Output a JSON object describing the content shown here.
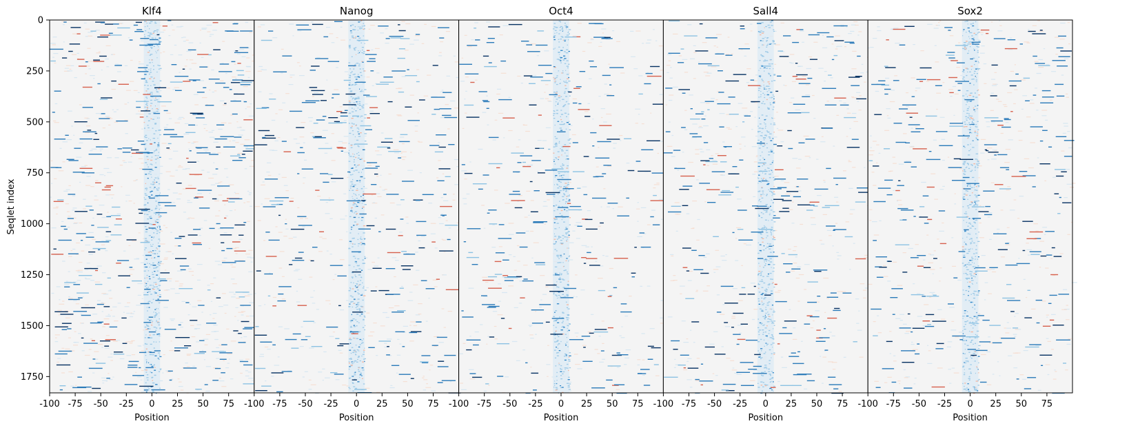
{
  "chart_data": {
    "type": "heatmap",
    "shared_ylabel": "Seqlet index",
    "y_ticks": [
      0,
      250,
      500,
      750,
      1000,
      1250,
      1500,
      1750
    ],
    "y_range": [
      0,
      1830
    ],
    "x_range": [
      -100,
      100
    ],
    "x_ticks_values": [
      -100,
      -75,
      -50,
      -25,
      0,
      25,
      50,
      75
    ],
    "x_ticks_labels": [
      "-100",
      "-75",
      "-50",
      "-25",
      "0",
      "25",
      "50",
      "75"
    ],
    "panels": [
      {
        "title": "Klf4",
        "xlabel": "Position",
        "noise_level": 0.85
      },
      {
        "title": "Nanog",
        "xlabel": "Position",
        "noise_level": 0.45
      },
      {
        "title": "Oct4",
        "xlabel": "Position",
        "noise_level": 0.35
      },
      {
        "title": "Sall4",
        "xlabel": "Position",
        "noise_level": 0.45
      },
      {
        "title": "Sox2",
        "xlabel": "Position",
        "noise_level": 0.45
      }
    ],
    "center_band": [
      -8,
      8
    ],
    "colormap": {
      "negative": "#d6604d",
      "neutral": "#f4f4f4",
      "positive": "#2166ac",
      "strong_positive": "#053061"
    },
    "grid": false
  }
}
